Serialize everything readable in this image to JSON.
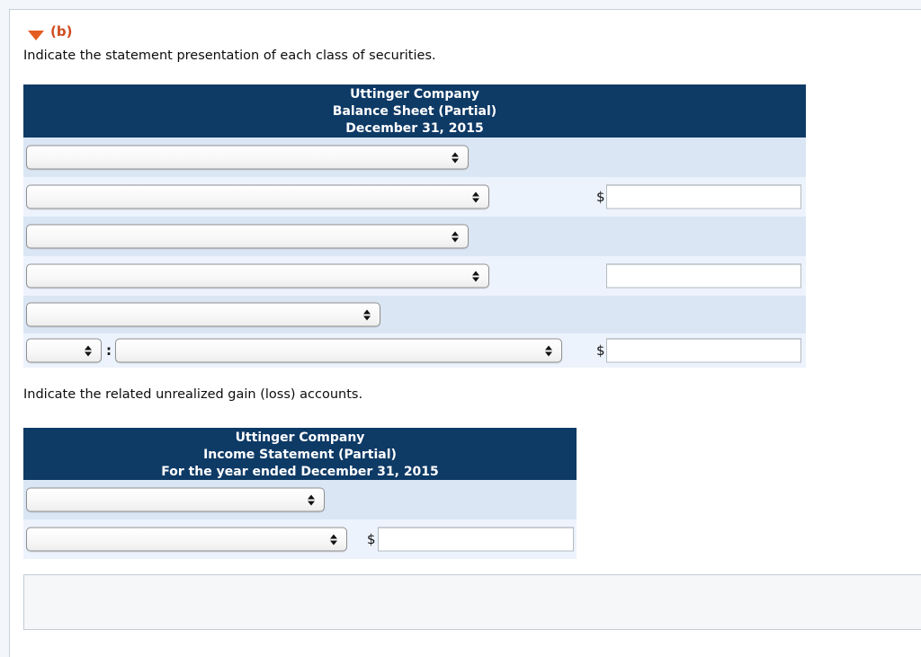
{
  "section": {
    "label": "(b)"
  },
  "instructions": {
    "presentation": "Indicate the statement presentation of each class of securities.",
    "unrealized_accounts": "Indicate the related unrealized gain (loss) accounts."
  },
  "balance_sheet": {
    "title_line1": "Uttinger Company",
    "title_line2": "Balance Sheet (Partial)",
    "title_line3": "December 31, 2015",
    "currency_symbol": "$",
    "separator": ":",
    "selects": {
      "selected_value": ""
    },
    "amount_inputs": {
      "value": ""
    }
  },
  "income_statement": {
    "title_line1": "Uttinger Company",
    "title_line2": "Income Statement (Partial)",
    "title_line3": "For the year ended December 31, 2015",
    "currency_symbol": "$",
    "selects": {
      "selected_value": ""
    },
    "amount_inputs": {
      "value": ""
    }
  },
  "colors": {
    "table_header_bg": "#0e3a66",
    "row_alt_light": "#dbe6f4",
    "row_alt_lighter": "#edf3fc",
    "section_accent": "#cf4a1d",
    "marker_orange": "#e45d22"
  }
}
